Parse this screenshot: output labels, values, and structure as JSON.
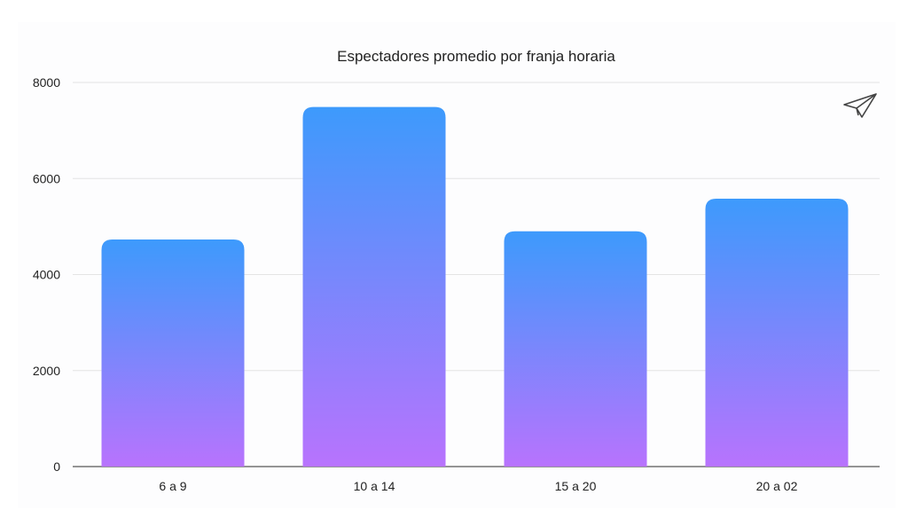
{
  "chart_data": {
    "type": "bar",
    "title": "Espectadores promedio por franja horaria",
    "categories": [
      "6 a 9",
      "10 a 14",
      "15 a 20",
      "20 a 02"
    ],
    "values": [
      4730,
      7490,
      4900,
      5580
    ],
    "xlabel": "",
    "ylabel": "",
    "ylim": [
      0,
      8000
    ],
    "yticks": [
      "0",
      "2000",
      "4000",
      "6000",
      "8000"
    ],
    "grid": true,
    "legend": "none",
    "colors": {
      "bar_top": "#3d9afc",
      "bar_bottom": "#b873fd",
      "grid": "#e4e4e4",
      "axis": "#555555"
    }
  },
  "toolbar": {
    "share_icon": "paper-plane-icon"
  }
}
